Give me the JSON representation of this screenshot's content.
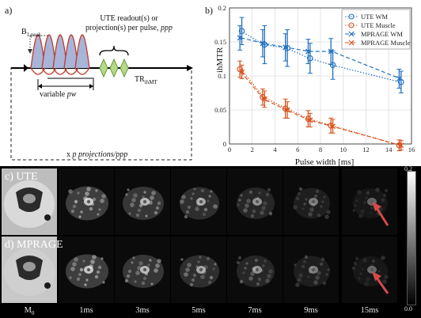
{
  "panel_a": {
    "label": "a)",
    "b1peak_label": "B",
    "b1peak_sub": "1,peak",
    "readout_label_line1": "UTE readout(s) or",
    "readout_label_line2": "projection(s) per pulse,",
    "readout_label_ppp": "ppp",
    "tr_label": "TR",
    "tr_sub": "ihMT",
    "pw_label": "variable",
    "pw_italic": "pw",
    "proj_label_prefix": "x",
    "proj_label_italic": "p projections/ppp",
    "colors": {
      "pulse_fill": "#a8b4d8",
      "pulse_stroke": "#c0392b",
      "readout_fill": "#b7d98b",
      "readout_stroke": "#6a9a3a"
    }
  },
  "panel_b": {
    "label": "b)",
    "chart_data": {
      "type": "line",
      "xlabel": "Pulse width [ms]",
      "ylabel": "ihMTR",
      "xlim": [
        0,
        16
      ],
      "ylim": [
        0,
        0.2
      ],
      "xticks": [
        "0",
        "2",
        "4",
        "6",
        "8",
        "10",
        "12",
        "14",
        "16"
      ],
      "yticks": [
        "0",
        "0.05",
        "0.1",
        "0.15",
        "0.2"
      ],
      "grid": true,
      "legend_position": "top-right",
      "series": [
        {
          "name": "UTE WM",
          "color": "#1f6fbf",
          "marker": "circle",
          "line": "dotted",
          "x": [
            1,
            3,
            5,
            7,
            9,
            15
          ],
          "y": [
            0.166,
            0.146,
            0.141,
            0.126,
            0.116,
            0.091
          ],
          "err": [
            0.02,
            0.028,
            0.027,
            0.022,
            0.021,
            0.016
          ]
        },
        {
          "name": "UTE Muscle",
          "color": "#d9531e",
          "marker": "circle",
          "line": "dotted",
          "x": [
            1,
            3,
            5,
            7,
            9,
            15
          ],
          "y": [
            0.11,
            0.069,
            0.052,
            0.037,
            0.027,
            -0.002
          ],
          "err": [
            0.012,
            0.012,
            0.014,
            0.012,
            0.011,
            0.008
          ]
        },
        {
          "name": "MPRAGE WM",
          "color": "#1f6fbf",
          "marker": "x",
          "line": "dashed",
          "x": [
            1,
            3,
            5,
            7,
            9,
            15
          ],
          "y": [
            0.156,
            0.148,
            0.142,
            0.136,
            0.136,
            0.096
          ],
          "err": [
            0.018,
            0.02,
            0.02,
            0.018,
            0.019,
            0.014
          ]
        },
        {
          "name": "MPRAGE Muscle",
          "color": "#d9531e",
          "marker": "x",
          "line": "dashed",
          "x": [
            1,
            3,
            5,
            7,
            9,
            15
          ],
          "y": [
            0.106,
            0.066,
            0.05,
            0.035,
            0.026,
            -0.002
          ],
          "err": [
            0.01,
            0.012,
            0.012,
            0.01,
            0.01,
            0.007
          ]
        }
      ]
    }
  },
  "panel_cd": {
    "row_c_label": "c) UTE",
    "row_d_label": "d) MPRAGE",
    "time_labels": [
      "M",
      "1ms",
      "3ms",
      "5ms",
      "7ms",
      "9ms",
      "15ms"
    ],
    "m0_sub": "0",
    "colorbar_max": "0.2",
    "colorbar_min": "0.0",
    "arrow_color": "#d44a4a"
  }
}
